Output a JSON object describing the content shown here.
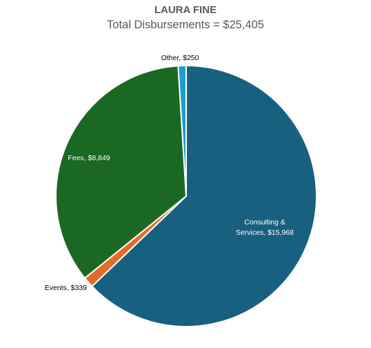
{
  "chart_data": {
    "type": "pie",
    "title": "LAURA FINE",
    "subtitle": "Total Disbursements = $25,405",
    "slices": [
      {
        "name": "Consulting & Services",
        "value": 15968,
        "label_lines": [
          "Consulting &",
          "Services, $15,968"
        ],
        "color": "#17607f",
        "label_color": "#ffffff"
      },
      {
        "name": "Events",
        "value": 339,
        "label_lines": [
          "Events, $339"
        ],
        "color": "#e46b2b",
        "label_color": "#000000"
      },
      {
        "name": "Fees",
        "value": 8849,
        "label_lines": [
          "Fees, $8,849"
        ],
        "color": "#1b6823",
        "label_color": "#ffffff"
      },
      {
        "name": "Other",
        "value": 250,
        "label_lines": [
          "Other, $250"
        ],
        "color": "#1b9dd0",
        "label_color": "#000000"
      }
    ]
  }
}
